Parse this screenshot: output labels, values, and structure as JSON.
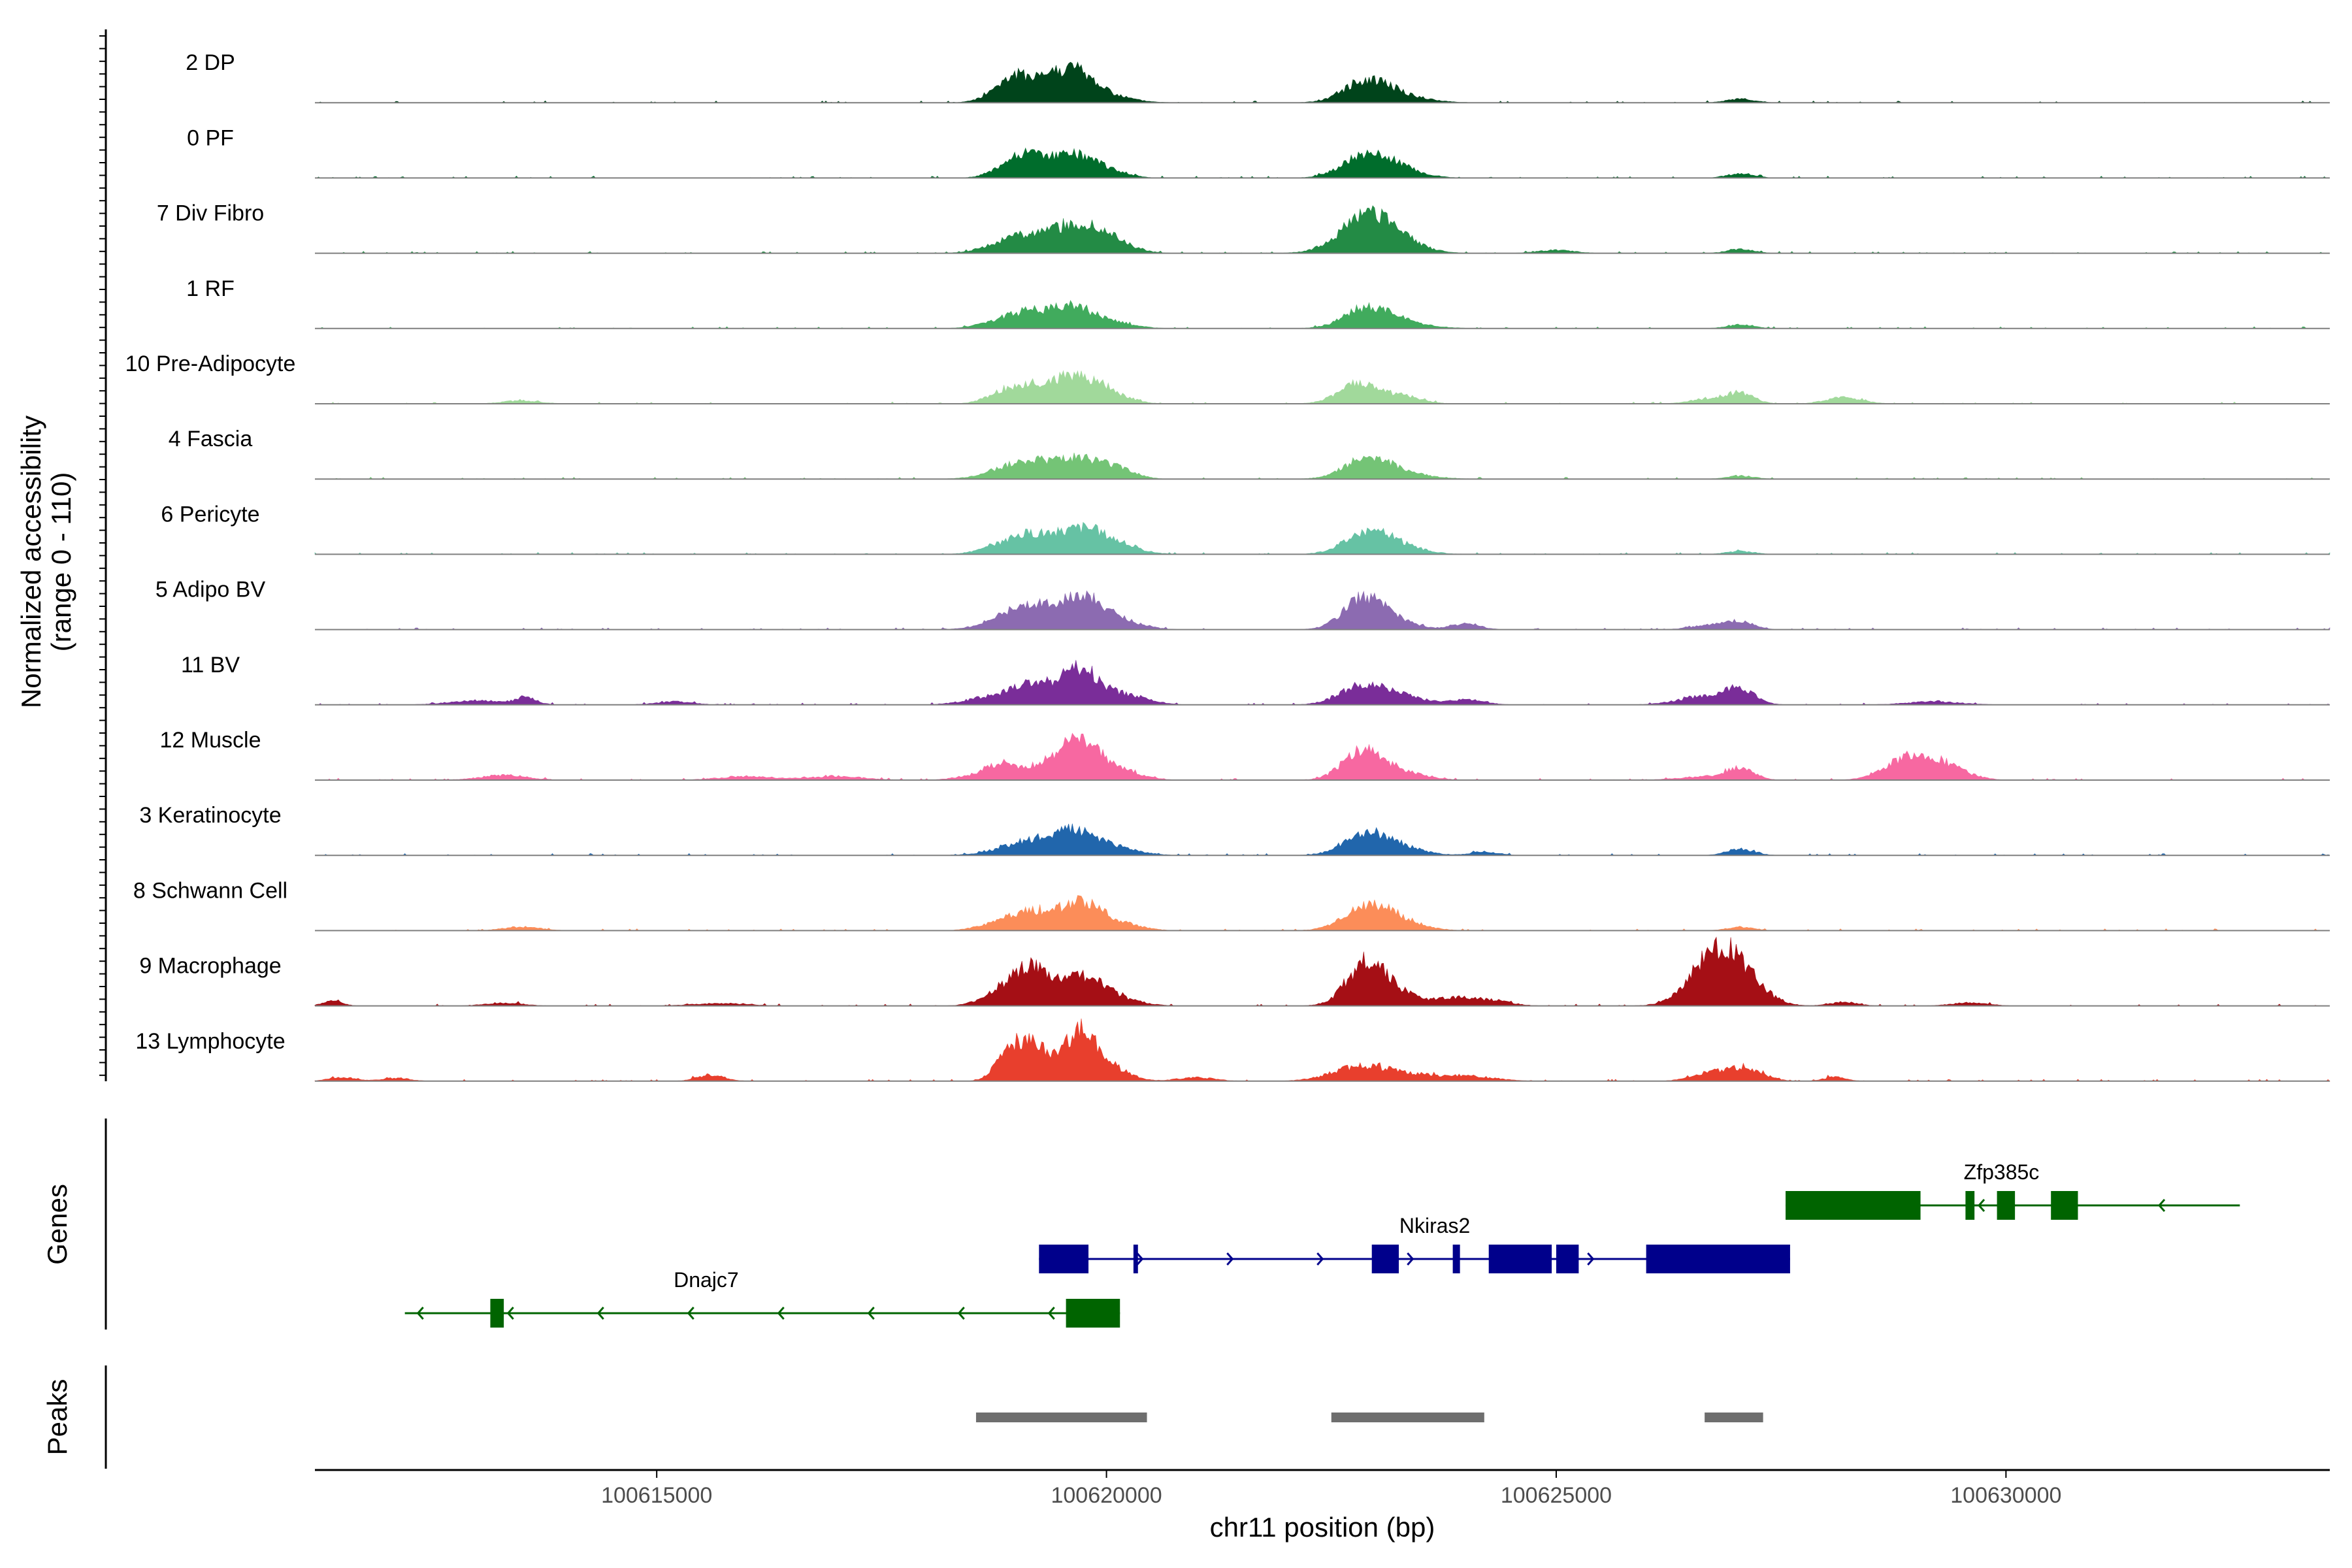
{
  "chart_data": {
    "type": "coverage",
    "chromosome": "chr11",
    "x_range": [
      100611200,
      100633600
    ],
    "y_axis_title": "Normalized accessibility",
    "y_axis_subtitle": "(range 0 - 110)",
    "y_range": [
      0,
      110
    ],
    "x_axis_title": "chr11 position (bp)",
    "x_ticks": [
      100615000,
      100620000,
      100625000,
      100630000
    ],
    "x_tick_labels": [
      "100615000",
      "100620000",
      "100625000",
      "100630000"
    ],
    "tracks": [
      {
        "label": "2 DP",
        "color": "#00441b",
        "peaks": [
          [
            100618900,
            20,
            200
          ],
          [
            100619150,
            30,
            250
          ],
          [
            100619600,
            42,
            220
          ],
          [
            100619900,
            14,
            300
          ],
          [
            100622900,
            35,
            250
          ],
          [
            100623300,
            8,
            300
          ],
          [
            100627050,
            6,
            150
          ]
        ]
      },
      {
        "label": "0 PF",
        "color": "#006d2c",
        "peaks": [
          [
            100618950,
            20,
            200
          ],
          [
            100619200,
            24,
            200
          ],
          [
            100619650,
            35,
            220
          ],
          [
            100620050,
            10,
            200
          ],
          [
            100622900,
            38,
            260
          ],
          [
            100623300,
            10,
            250
          ],
          [
            100627050,
            7,
            150
          ]
        ]
      },
      {
        "label": "7 Div Fibro",
        "color": "#238b45",
        "peaks": [
          [
            100618900,
            15,
            250
          ],
          [
            100619300,
            20,
            300
          ],
          [
            100619700,
            30,
            300
          ],
          [
            100620000,
            15,
            250
          ],
          [
            100622900,
            55,
            300
          ],
          [
            100623200,
            12,
            300
          ],
          [
            100625000,
            5,
            200
          ],
          [
            100627050,
            6,
            150
          ]
        ]
      },
      {
        "label": "1 RF",
        "color": "#41ab5d",
        "peaks": [
          [
            100618900,
            15,
            250
          ],
          [
            100619200,
            18,
            200
          ],
          [
            100619600,
            33,
            200
          ],
          [
            100620000,
            12,
            250
          ],
          [
            100622900,
            32,
            250
          ],
          [
            100623300,
            8,
            300
          ],
          [
            100627050,
            6,
            150
          ]
        ]
      },
      {
        "label": "10 Pre-Adipocyte",
        "color": "#a1d99b",
        "peaks": [
          [
            100613500,
            5,
            200
          ],
          [
            100618900,
            20,
            200
          ],
          [
            100619300,
            22,
            250
          ],
          [
            100619700,
            36,
            250
          ],
          [
            100620100,
            10,
            200
          ],
          [
            100622800,
            32,
            220
          ],
          [
            100623300,
            12,
            200
          ],
          [
            100626700,
            8,
            200
          ],
          [
            100627050,
            16,
            150
          ],
          [
            100628200,
            10,
            200
          ]
        ]
      },
      {
        "label": "4 Fascia",
        "color": "#74c476",
        "peaks": [
          [
            100618900,
            16,
            250
          ],
          [
            100619200,
            20,
            200
          ],
          [
            100619650,
            33,
            220
          ],
          [
            100620100,
            18,
            200
          ],
          [
            100622900,
            32,
            250
          ],
          [
            100623300,
            8,
            300
          ],
          [
            100627050,
            5,
            150
          ]
        ]
      },
      {
        "label": "6 Pericyte",
        "color": "#66c2a4",
        "peaks": [
          [
            100618900,
            16,
            250
          ],
          [
            100619200,
            22,
            200
          ],
          [
            100619700,
            38,
            250
          ],
          [
            100620100,
            14,
            250
          ],
          [
            100622900,
            35,
            250
          ],
          [
            100623300,
            10,
            250
          ],
          [
            100627050,
            5,
            150
          ]
        ]
      },
      {
        "label": "5 Adipo BV",
        "color": "#8c6bb1",
        "peaks": [
          [
            100618900,
            20,
            250
          ],
          [
            100619200,
            28,
            200
          ],
          [
            100619700,
            50,
            220
          ],
          [
            100620100,
            16,
            250
          ],
          [
            100622850,
            48,
            220
          ],
          [
            100623200,
            12,
            250
          ],
          [
            100624000,
            10,
            150
          ],
          [
            100626700,
            7,
            200
          ],
          [
            100627050,
            12,
            150
          ]
        ]
      },
      {
        "label": "11 BV",
        "color": "#7a2d99",
        "peaks": [
          [
            100613000,
            7,
            300
          ],
          [
            100613550,
            10,
            120
          ],
          [
            100615200,
            5,
            200
          ],
          [
            100618800,
            15,
            300
          ],
          [
            100619200,
            30,
            200
          ],
          [
            100619700,
            58,
            200
          ],
          [
            100620200,
            16,
            250
          ],
          [
            100622850,
            30,
            250
          ],
          [
            100623300,
            12,
            250
          ],
          [
            100624000,
            8,
            200
          ],
          [
            100626700,
            15,
            300
          ],
          [
            100627050,
            20,
            150
          ],
          [
            100629200,
            5,
            300
          ]
        ]
      },
      {
        "label": "12 Muscle",
        "color": "#f768a1",
        "peaks": [
          [
            100613300,
            8,
            250
          ],
          [
            100616000,
            6,
            300
          ],
          [
            100617000,
            6,
            300
          ],
          [
            100618500,
            6,
            200
          ],
          [
            100618800,
            20,
            150
          ],
          [
            100619300,
            22,
            300
          ],
          [
            100619700,
            50,
            220
          ],
          [
            100620100,
            16,
            250
          ],
          [
            100622850,
            46,
            220
          ],
          [
            100623300,
            12,
            250
          ],
          [
            100626700,
            6,
            300
          ],
          [
            100627050,
            16,
            150
          ],
          [
            100628900,
            32,
            250
          ],
          [
            100629300,
            22,
            250
          ]
        ]
      },
      {
        "label": "3 Keratinocyte",
        "color": "#2166ac",
        "peaks": [
          [
            100618900,
            10,
            250
          ],
          [
            100619200,
            18,
            200
          ],
          [
            100619650,
            38,
            220
          ],
          [
            100620100,
            12,
            250
          ],
          [
            100622900,
            33,
            250
          ],
          [
            100623300,
            10,
            250
          ],
          [
            100624200,
            6,
            150
          ],
          [
            100627050,
            10,
            150
          ]
        ]
      },
      {
        "label": "8 Schwann Cell",
        "color": "#fc8d59",
        "peaks": [
          [
            100613500,
            6,
            200
          ],
          [
            100618900,
            16,
            250
          ],
          [
            100619200,
            22,
            200
          ],
          [
            100619700,
            42,
            220
          ],
          [
            100620100,
            12,
            250
          ],
          [
            100622900,
            40,
            250
          ],
          [
            100623300,
            12,
            250
          ],
          [
            100627050,
            6,
            150
          ]
        ]
      },
      {
        "label": "9 Macrophage",
        "color": "#a50f15",
        "peaks": [
          [
            100611400,
            10,
            100
          ],
          [
            100613300,
            5,
            200
          ],
          [
            100615700,
            4,
            300
          ],
          [
            100618800,
            18,
            200
          ],
          [
            100619150,
            58,
            200
          ],
          [
            100619700,
            45,
            220
          ],
          [
            100620100,
            12,
            250
          ],
          [
            100622900,
            68,
            220
          ],
          [
            100623300,
            14,
            250
          ],
          [
            100623900,
            12,
            200
          ],
          [
            100624300,
            8,
            200
          ],
          [
            100626800,
            85,
            280
          ],
          [
            100627100,
            20,
            250
          ],
          [
            100628200,
            6,
            150
          ],
          [
            100629600,
            5,
            200
          ]
        ]
      },
      {
        "label": "13 Lymphocyte",
        "color": "#e83f2d",
        "peaks": [
          [
            100611500,
            6,
            150
          ],
          [
            100612100,
            5,
            150
          ],
          [
            100615600,
            10,
            150
          ],
          [
            100618900,
            30,
            150
          ],
          [
            100619150,
            55,
            180
          ],
          [
            100619700,
            78,
            200
          ],
          [
            100620100,
            15,
            200
          ],
          [
            100621000,
            6,
            200
          ],
          [
            100622800,
            22,
            300
          ],
          [
            100623300,
            10,
            300
          ],
          [
            100624000,
            8,
            300
          ],
          [
            100626700,
            12,
            200
          ],
          [
            100627100,
            20,
            200
          ],
          [
            100628100,
            7,
            120
          ]
        ]
      }
    ],
    "genes_title": "Genes",
    "genes": [
      {
        "name": "Zfp385c",
        "color": "#006400",
        "strand": "-",
        "start": 100627550,
        "end": 100632600,
        "exons": [
          [
            100627550,
            100629050
          ],
          [
            100629550,
            100629650
          ],
          [
            100629900,
            100630100
          ],
          [
            100630500,
            100630800
          ]
        ]
      },
      {
        "name": "Nkiras2",
        "color": "#00008b",
        "strand": "+",
        "start": 100619250,
        "end": 100627600,
        "exons": [
          [
            100619250,
            100619800
          ],
          [
            100620300,
            100620350
          ],
          [
            100622950,
            100623250
          ],
          [
            100623850,
            100623930
          ],
          [
            100624250,
            100624950
          ],
          [
            100625000,
            100625250
          ],
          [
            100626000,
            100627600
          ]
        ]
      },
      {
        "name": "Dnajc7",
        "color": "#006400",
        "strand": "-",
        "start": 100612200,
        "end": 100620150,
        "exons": [
          [
            100613150,
            100613300
          ],
          [
            100619550,
            100620150
          ]
        ]
      }
    ],
    "peaks_title": "Peaks",
    "peak_regions": [
      [
        100618550,
        100620450
      ],
      [
        100622500,
        100624200
      ],
      [
        100626650,
        100627300
      ]
    ]
  }
}
